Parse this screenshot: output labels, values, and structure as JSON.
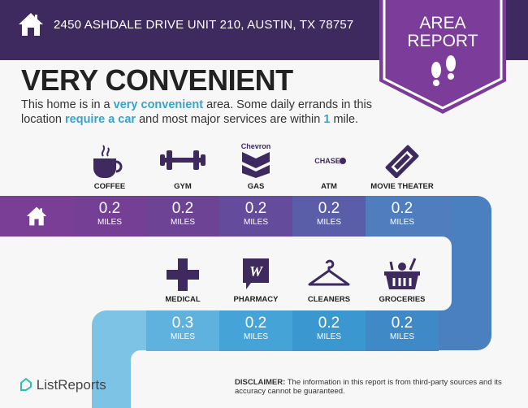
{
  "header": {
    "address": "2450 ASHDALE DRIVE UNIT 210, AUSTIN, TX 78757",
    "badge_line1": "AREA",
    "badge_line2": "REPORT"
  },
  "headline": "VERY CONVENIENT",
  "description": {
    "p1": "This home is in a ",
    "h1": "very convenient",
    "p2": " area. Some daily errands in this location ",
    "h2": "require a car",
    "p3": " and most major services are within ",
    "h3": "1",
    "p4": " mile."
  },
  "row1": [
    {
      "label": "COFFEE",
      "value": "0.2",
      "unit": "MILES",
      "icon": "coffee-cup-icon"
    },
    {
      "label": "GYM",
      "value": "0.2",
      "unit": "MILES",
      "icon": "dumbbell-icon"
    },
    {
      "label": "GAS",
      "value": "0.2",
      "unit": "MILES",
      "icon": "chevron-logo",
      "brand": "Chevron"
    },
    {
      "label": "ATM",
      "value": "0.2",
      "unit": "MILES",
      "icon": "chase-logo",
      "brand": "CHASE"
    },
    {
      "label": "MOVIE THEATER",
      "value": "0.2",
      "unit": "MILES",
      "icon": "ticket-icon"
    }
  ],
  "row2": [
    {
      "label": "MEDICAL",
      "value": "0.3",
      "unit": "MILES",
      "icon": "medical-cross-icon"
    },
    {
      "label": "PHARMACY",
      "value": "0.2",
      "unit": "MILES",
      "icon": "walgreens-logo"
    },
    {
      "label": "CLEANERS",
      "value": "0.2",
      "unit": "MILES",
      "icon": "hanger-icon"
    },
    {
      "label": "GROCERIES",
      "value": "0.2",
      "unit": "MILES",
      "icon": "grocery-basket-icon"
    }
  ],
  "colors": {
    "header": "#3e2a5e",
    "badge": "#7b3c9a",
    "accent": "#3aa3c8",
    "icon": "#3e2a5e"
  },
  "footer": {
    "logo": "ListReports",
    "disclaimer_label": "DISCLAIMER:",
    "disclaimer_text": " The information in this report is from third-party sources and its accuracy cannot be guaranteed."
  }
}
